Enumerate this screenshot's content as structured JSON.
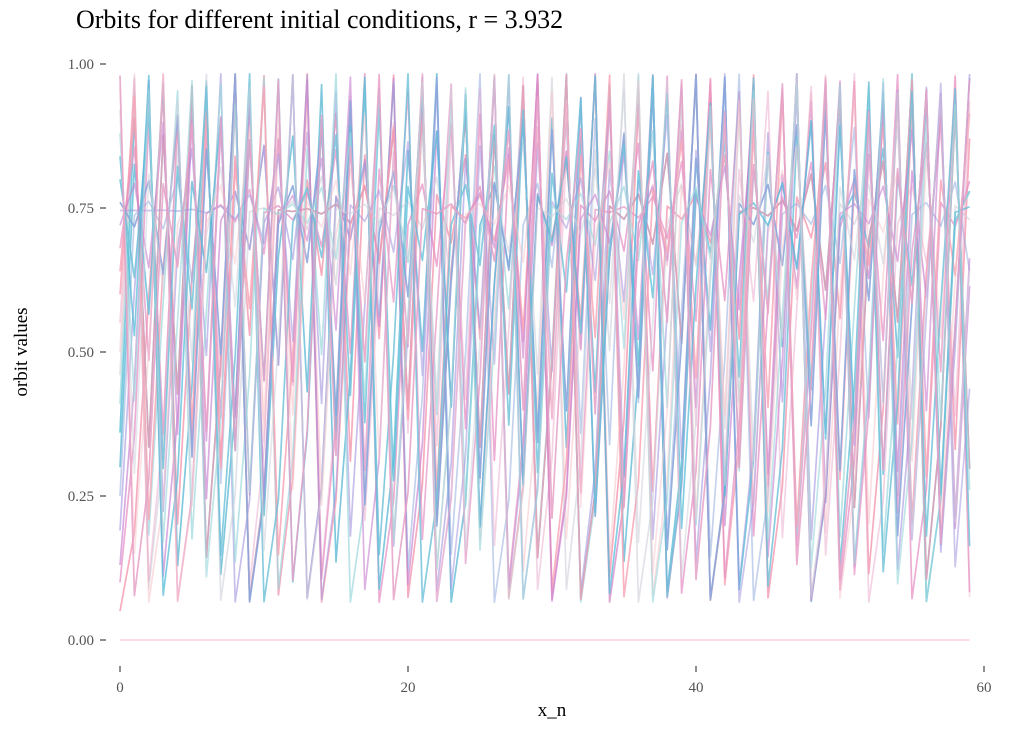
{
  "chart_data": {
    "type": "line",
    "title": "Orbits for different initial conditions, r = 3.932",
    "xlabel": "x_n",
    "ylabel": "orbit values",
    "r": 3.932,
    "xlim": [
      0,
      59
    ],
    "ylim": [
      0,
      1
    ],
    "n_steps": 60,
    "x_ticks": [
      "0",
      "20",
      "40",
      "60"
    ],
    "x_tick_values": [
      0,
      20,
      40,
      60
    ],
    "y_ticks": [
      "0.00",
      "0.25",
      "0.50",
      "0.75",
      "1.00"
    ],
    "y_tick_values": [
      0,
      0.25,
      0.5,
      0.75,
      1.0
    ],
    "grid": false,
    "legend": "none",
    "initial_conditions": [
      0.0,
      0.05,
      0.1,
      0.13,
      0.19,
      0.25,
      0.3,
      0.36,
      0.41,
      0.46,
      0.5,
      0.55,
      0.6,
      0.64,
      0.68,
      0.72,
      0.7456,
      0.76,
      0.8,
      0.84,
      0.88,
      0.92,
      0.96,
      0.98
    ],
    "palette": [
      "#f8a5b5",
      "#f49ab0",
      "#e58fc3",
      "#c77fd0",
      "#9f8fdc",
      "#8aa6dc",
      "#6cc0d9",
      "#52bcd8",
      "#9ed8dd",
      "#cfd3dc",
      "#f6c3c9",
      "#e7a1c7"
    ]
  }
}
